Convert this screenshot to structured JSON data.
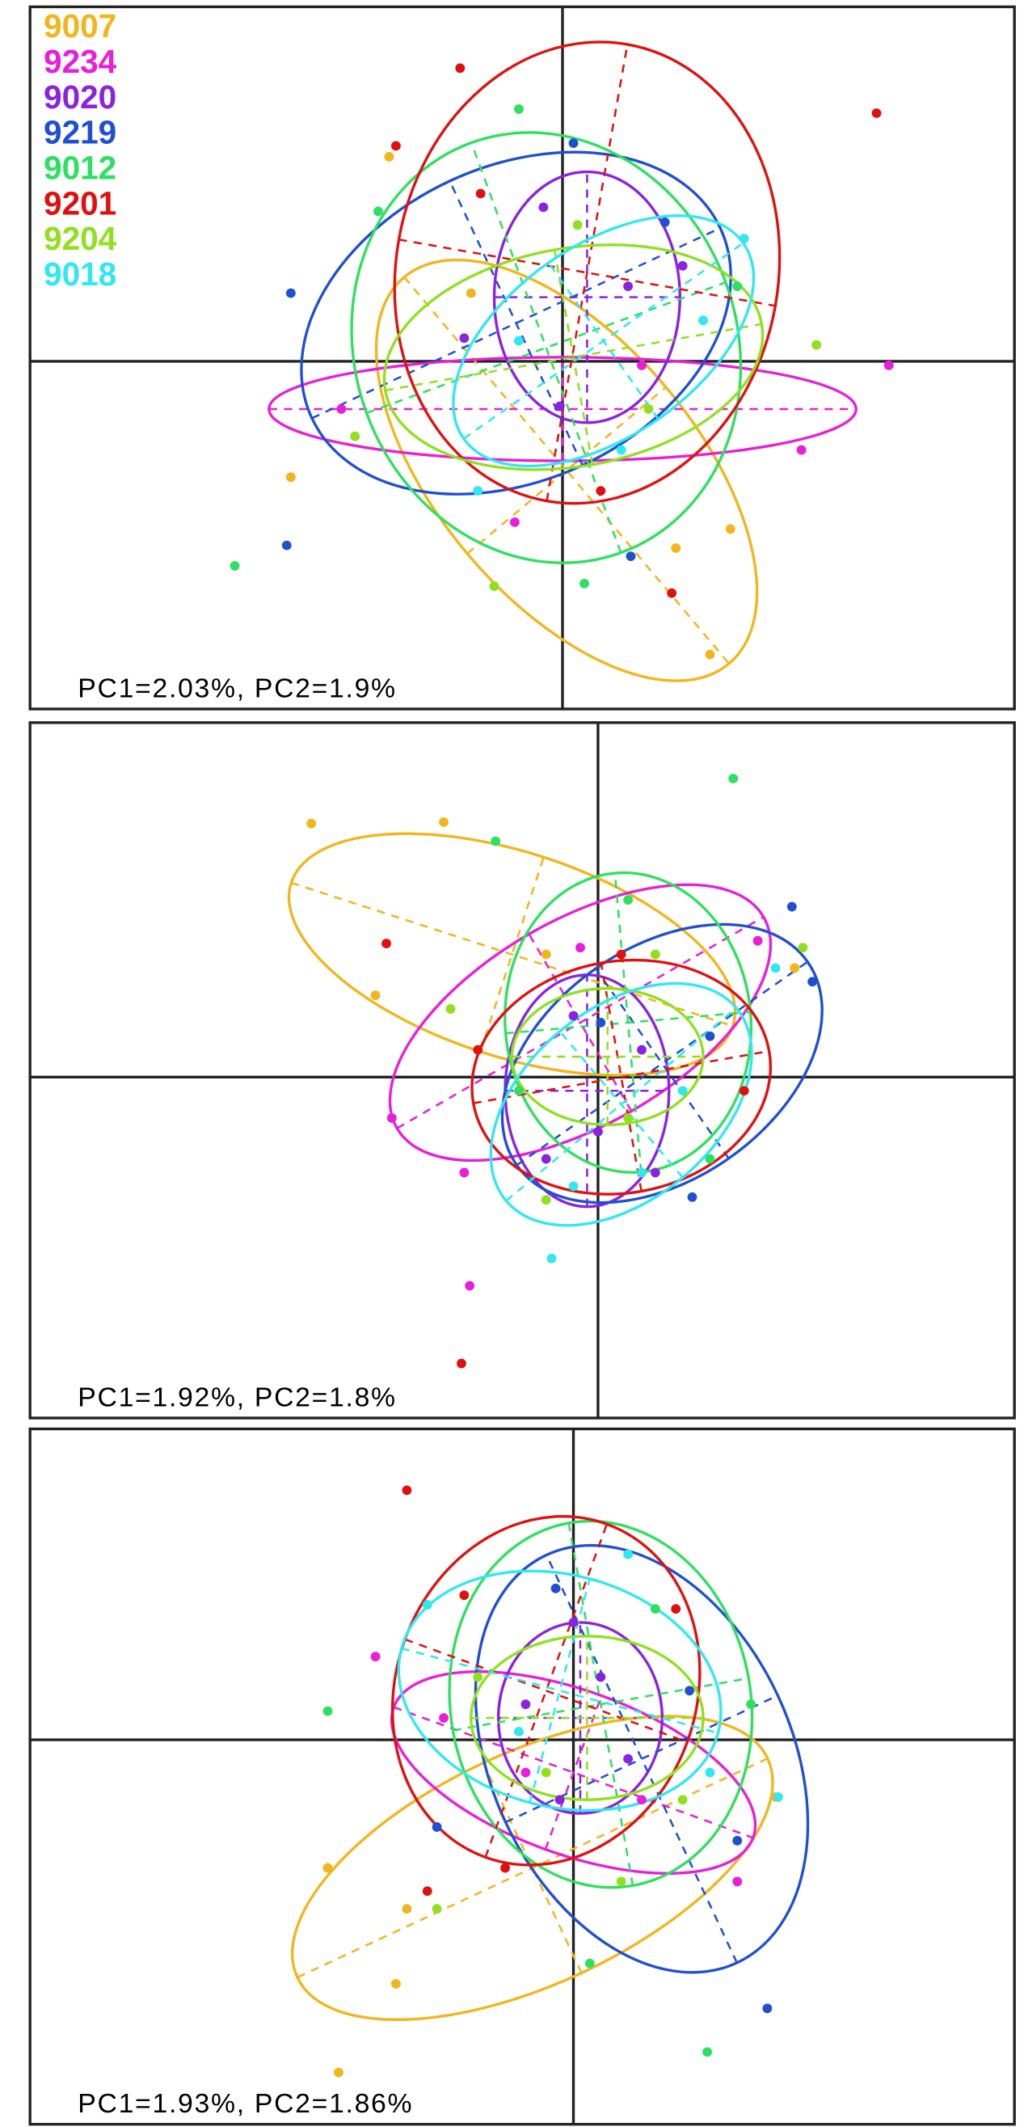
{
  "chart_data": [
    {
      "type": "scatter",
      "annotation": "PC1=2.03%, PC2=1.9%",
      "xlim": [
        -390,
        331
      ],
      "ylim": [
        -255,
        260
      ],
      "legend": "upper left",
      "series": [
        {
          "name": "9007",
          "color": "#f2b51c",
          "x": [
            -199,
            108,
            123,
            83,
            -67,
            -127
          ],
          "y": [
            -85,
            -215,
            -123,
            -137,
            50,
            150
          ],
          "ellipse": {
            "cx": 3,
            "cy": -80,
            "rx": 185,
            "ry": 95,
            "angle": -50
          }
        },
        {
          "name": "9234",
          "color": "#e81ed8",
          "x": [
            239,
            175,
            -162,
            -35,
            58
          ],
          "y": [
            -3,
            -65,
            -35,
            -118,
            -3
          ],
          "ellipse": {
            "cx": 0,
            "cy": -35,
            "rx": 215,
            "ry": 38,
            "angle": 0
          }
        },
        {
          "name": "9020",
          "color": "#8a22e0",
          "x": [
            -14,
            -2,
            48,
            -72,
            88
          ],
          "y": [
            113,
            -33,
            55,
            17,
            70
          ],
          "ellipse": {
            "cx": 18,
            "cy": 47,
            "rx": 68,
            "ry": 92,
            "angle": 0
          }
        },
        {
          "name": "9219",
          "color": "#2050d0",
          "x": [
            -199,
            -202,
            50,
            8,
            75
          ],
          "y": [
            50,
            -135,
            -143,
            160,
            102
          ],
          "ellipse": {
            "cx": -34,
            "cy": 28,
            "rx": 165,
            "ry": 115,
            "angle": 25
          }
        },
        {
          "name": "9012",
          "color": "#2ee060",
          "x": [
            -240,
            -135,
            16,
            -32,
            128
          ],
          "y": [
            -150,
            110,
            -163,
            185,
            55
          ],
          "ellipse": {
            "cx": -12,
            "cy": 10,
            "rx": 140,
            "ry": 160,
            "angle": 20
          }
        },
        {
          "name": "9201",
          "color": "#e01010",
          "x": [
            230,
            -75,
            -122,
            80,
            -60,
            28
          ],
          "y": [
            182,
            215,
            158,
            -170,
            123,
            -95
          ],
          "ellipse": {
            "cx": 18,
            "cy": 65,
            "rx": 140,
            "ry": 170,
            "angle": -10
          }
        },
        {
          "name": "9204",
          "color": "#90e020",
          "x": [
            186,
            -50,
            -152,
            11,
            63
          ],
          "y": [
            12,
            -165,
            -55,
            100,
            -35
          ],
          "ellipse": {
            "cx": 8,
            "cy": 3,
            "rx": 140,
            "ry": 80,
            "angle": 10
          }
        },
        {
          "name": "9018",
          "color": "#30e8f0",
          "x": [
            -62,
            133,
            103,
            -32,
            43
          ],
          "y": [
            -95,
            90,
            30,
            15,
            -65
          ],
          "ellipse": {
            "cx": 30,
            "cy": 15,
            "rx": 125,
            "ry": 70,
            "angle": 35
          }
        }
      ]
    },
    {
      "type": "scatter",
      "annotation": "PC1=1.92%, PC2=1.8%",
      "xlim": [
        -416,
        305
      ],
      "ylim": [
        -250,
        260
      ],
      "series": [
        {
          "color": "#f2b51c",
          "x": [
            -210,
            -113,
            -163,
            144,
            -38
          ],
          "y": [
            186,
            187,
            60,
            80,
            90
          ],
          "ellipse": {
            "cx": -63,
            "cy": 90,
            "rx": 170,
            "ry": 75,
            "angle": -18
          }
        },
        {
          "color": "#e81ed8",
          "x": [
            -94,
            -151,
            117,
            -13,
            -98
          ],
          "y": [
            -153,
            -30,
            100,
            95,
            -70
          ],
          "ellipse": {
            "cx": -13,
            "cy": 40,
            "rx": 155,
            "ry": 75,
            "angle": 30
          }
        },
        {
          "color": "#8a22e0",
          "x": [
            0,
            -38,
            32,
            -18,
            42
          ],
          "y": [
            -40,
            -60,
            20,
            45,
            -70
          ],
          "ellipse": {
            "cx": -8,
            "cy": -10,
            "rx": 60,
            "ry": 85,
            "angle": 0
          }
        },
        {
          "color": "#2050d0",
          "x": [
            142,
            157,
            69,
            2,
            82
          ],
          "y": [
            125,
            70,
            -88,
            40,
            30
          ],
          "ellipse": {
            "cx": 47,
            "cy": 10,
            "rx": 130,
            "ry": 85,
            "angle": 35
          }
        },
        {
          "color": "#2ee060",
          "x": [
            99,
            -75,
            22,
            82,
            -58
          ],
          "y": [
            219,
            173,
            130,
            -60,
            -10
          ],
          "ellipse": {
            "cx": 22,
            "cy": 40,
            "rx": 90,
            "ry": 110,
            "angle": 5
          }
        },
        {
          "color": "#e01010",
          "x": [
            -100,
            -155,
            -88,
            107,
            17
          ],
          "y": [
            -210,
            98,
            20,
            -10,
            90
          ],
          "ellipse": {
            "cx": 17,
            "cy": 0,
            "rx": 110,
            "ry": 85,
            "angle": 10
          }
        },
        {
          "color": "#90e020",
          "x": [
            150,
            -108,
            22,
            42,
            -38
          ],
          "y": [
            95,
            50,
            -30,
            90,
            -90
          ],
          "ellipse": {
            "cx": 7,
            "cy": 15,
            "rx": 70,
            "ry": 50,
            "angle": 0
          }
        },
        {
          "color": "#30e8f0",
          "x": [
            -34,
            130,
            62,
            -18,
            32
          ],
          "y": [
            -133,
            80,
            -10,
            -80,
            -70
          ],
          "ellipse": {
            "cx": 17,
            "cy": -20,
            "rx": 110,
            "ry": 70,
            "angle": 40
          }
        }
      ]
    },
    {
      "type": "scatter",
      "annotation": "PC1=1.93%, PC2=1.86%",
      "xlim": [
        -398,
        323
      ],
      "ylim": [
        -282,
        228
      ],
      "series": [
        {
          "color": "#f2b51c",
          "x": [
            -172,
            -180,
            -122,
            148,
            -130
          ],
          "y": [
            -244,
            -94,
            -124,
            -42,
            -179
          ],
          "ellipse": {
            "cx": -30,
            "cy": -94,
            "rx": 190,
            "ry": 85,
            "angle": 25
          }
        },
        {
          "color": "#e81ed8",
          "x": [
            -145,
            120,
            -35,
            50,
            -95
          ],
          "y": [
            61,
            -104,
            -24,
            -44,
            16
          ],
          "ellipse": {
            "cx": 0,
            "cy": -24,
            "rx": 140,
            "ry": 60,
            "angle": -20
          }
        },
        {
          "color": "#8a22e0",
          "x": [
            -10,
            20,
            -35,
            40,
            0
          ],
          "y": [
            -44,
            46,
            26,
            -14,
            86
          ],
          "ellipse": {
            "cx": 5,
            "cy": 16,
            "rx": 60,
            "ry": 70,
            "angle": 0
          }
        },
        {
          "color": "#2050d0",
          "x": [
            142,
            -13,
            85,
            120,
            -100
          ],
          "y": [
            -197,
            111,
            36,
            -74,
            -64
          ],
          "ellipse": {
            "cx": 50,
            "cy": -14,
            "rx": 110,
            "ry": 165,
            "angle": 25
          }
        },
        {
          "color": "#2ee060",
          "x": [
            98,
            -180,
            12,
            60,
            130
          ],
          "y": [
            -229,
            21,
            -164,
            96,
            26
          ],
          "ellipse": {
            "cx": 20,
            "cy": 26,
            "rx": 110,
            "ry": 135,
            "angle": 10
          }
        },
        {
          "color": "#e01010",
          "x": [
            -122,
            -107,
            -50,
            75,
            -80
          ],
          "y": [
            183,
            -111,
            -94,
            96,
            106
          ],
          "ellipse": {
            "cx": -20,
            "cy": 36,
            "rx": 110,
            "ry": 130,
            "angle": -20
          }
        },
        {
          "color": "#90e020",
          "x": [
            -100,
            35,
            -20,
            80,
            -70
          ],
          "y": [
            -124,
            -104,
            -24,
            -44,
            46
          ],
          "ellipse": {
            "cx": 10,
            "cy": 16,
            "rx": 85,
            "ry": 60,
            "angle": 0
          }
        },
        {
          "color": "#30e8f0",
          "x": [
            -107,
            150,
            40,
            -40,
            100
          ],
          "y": [
            99,
            -42,
            136,
            6,
            -24
          ],
          "ellipse": {
            "cx": -10,
            "cy": 36,
            "rx": 120,
            "ry": 85,
            "angle": -15
          }
        }
      ]
    }
  ]
}
